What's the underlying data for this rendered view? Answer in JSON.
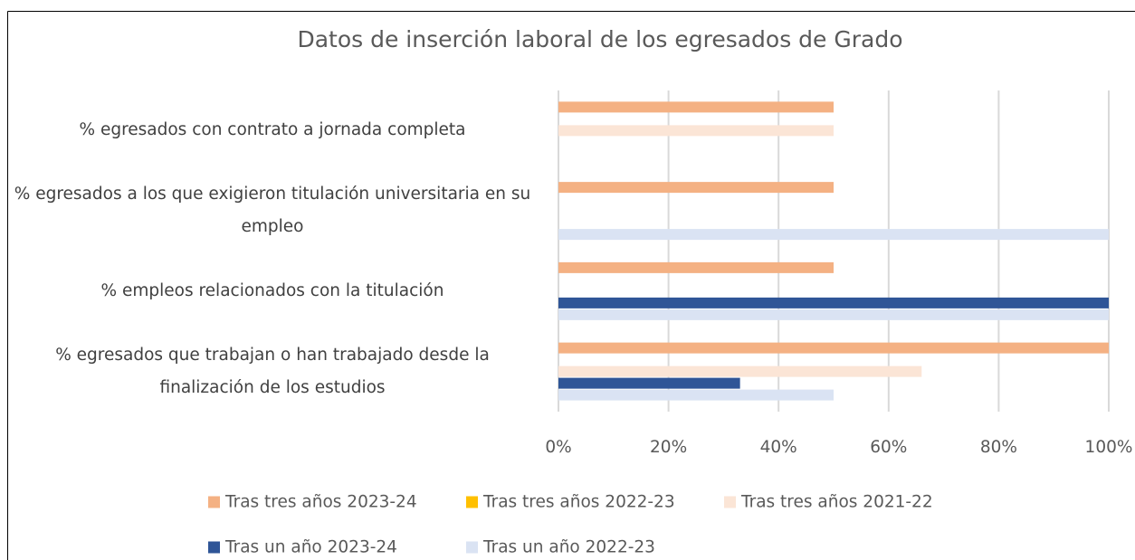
{
  "chart_data": {
    "type": "bar",
    "orientation": "horizontal",
    "title": "Datos de inserción laboral de los egresados de Grado",
    "categories": [
      "% egresados con contrato a jornada completa",
      "% egresados a los que exigieron titulación universitaria en su empleo",
      "% empleos relacionados con la titulación",
      "% egresados que trabajan o han trabajado desde la finalización de los estudios"
    ],
    "series": [
      {
        "name": "Tras tres años 2023-24",
        "color": "#f4b183",
        "values": [
          50,
          50,
          50,
          100
        ]
      },
      {
        "name": "Tras tres años 2022-23",
        "color": "#ffc000",
        "values": [
          null,
          null,
          null,
          null
        ]
      },
      {
        "name": "Tras tres años 2021-22",
        "color": "#fbe5d6",
        "values": [
          50,
          null,
          null,
          66
        ]
      },
      {
        "name": "Tras un año 2023-24",
        "color": "#2f5597",
        "values": [
          null,
          null,
          100,
          33
        ]
      },
      {
        "name": "Tras un año 2022-23",
        "color": "#dae3f3",
        "values": [
          null,
          100,
          100,
          50
        ]
      }
    ],
    "xlim": [
      0,
      100
    ],
    "xticks": [
      {
        "value": 0,
        "label": "0%"
      },
      {
        "value": 20,
        "label": "20%"
      },
      {
        "value": 40,
        "label": "40%"
      },
      {
        "value": 60,
        "label": "60%"
      },
      {
        "value": 80,
        "label": "80%"
      },
      {
        "value": 100,
        "label": "100%"
      }
    ],
    "grid": true,
    "legend": "bottom"
  }
}
